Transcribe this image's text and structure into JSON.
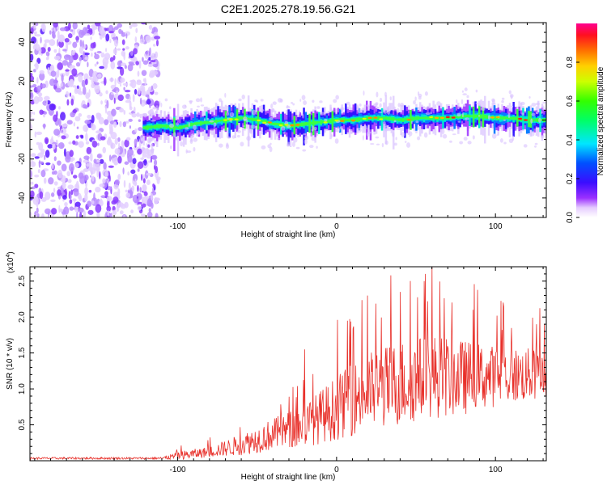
{
  "title": "C2E1.2025.278.19.56.G21",
  "colors": {
    "snr_line": "#e8302a",
    "axis": "#000000",
    "cloud": "#8a2be2"
  },
  "chart_data": [
    {
      "type": "heatmap",
      "name": "spectrogram",
      "xlabel": "Height of straight line (km)",
      "ylabel": "Frequency (Hz)",
      "xlim": [
        -193,
        132
      ],
      "ylim": [
        -50,
        50
      ],
      "xticks": [
        -100,
        0,
        100
      ],
      "xtick_labels": [
        "-100",
        "0",
        "100"
      ],
      "yticks": [
        -40,
        -20,
        0,
        20,
        40
      ],
      "ytick_labels": [
        "-40",
        "-20",
        "0",
        "20",
        "40"
      ],
      "noise_region_x": [
        -193,
        -112
      ],
      "signal_start_x": -122,
      "center_line": [
        [
          -122,
          -4
        ],
        [
          -110,
          -3
        ],
        [
          -100,
          -4
        ],
        [
          -90,
          -2
        ],
        [
          -80,
          -1
        ],
        [
          -70,
          0
        ],
        [
          -60,
          1
        ],
        [
          -50,
          0
        ],
        [
          -40,
          -2
        ],
        [
          -30,
          -3
        ],
        [
          -20,
          -2
        ],
        [
          -10,
          -1
        ],
        [
          0,
          0
        ],
        [
          10,
          0
        ],
        [
          20,
          1
        ],
        [
          30,
          1
        ],
        [
          40,
          0
        ],
        [
          50,
          1
        ],
        [
          60,
          1
        ],
        [
          70,
          1
        ],
        [
          80,
          2
        ],
        [
          90,
          2
        ],
        [
          100,
          1
        ],
        [
          110,
          1
        ],
        [
          120,
          0
        ],
        [
          132,
          0
        ]
      ],
      "colorbar": {
        "label": "Normalized spectral amplitude",
        "range": [
          0,
          1
        ],
        "ticks": [
          0.0,
          0.2,
          0.4,
          0.6,
          0.8
        ],
        "tick_labels": [
          "0.0",
          "0.2",
          "0.4",
          "0.6",
          "0.8"
        ]
      }
    },
    {
      "type": "line",
      "name": "snr",
      "xlabel": "Height of straight line (km)",
      "ylabel": "SNR (10 * v/v)",
      "y_multiplier": "(x10",
      "y_multiplier_exp": "4",
      "y_multiplier_close": ")",
      "xlim": [
        -193,
        132
      ],
      "ylim": [
        0,
        2.7
      ],
      "xticks": [
        -100,
        0,
        100
      ],
      "xtick_labels": [
        "-100",
        "0",
        "100"
      ],
      "yticks": [
        0.5,
        1.0,
        1.5,
        2.0,
        2.5
      ],
      "ytick_labels": [
        "0.5",
        "1.0",
        "1.5",
        "2.0",
        "2.5"
      ],
      "envelope": [
        {
          "x": -193,
          "base": 0.03,
          "amp": 0.03
        },
        {
          "x": -110,
          "base": 0.03,
          "amp": 0.03
        },
        {
          "x": -100,
          "base": 0.05,
          "amp": 0.12
        },
        {
          "x": -80,
          "base": 0.1,
          "amp": 0.15
        },
        {
          "x": -60,
          "base": 0.18,
          "amp": 0.3
        },
        {
          "x": -40,
          "base": 0.3,
          "amp": 0.45
        },
        {
          "x": -20,
          "base": 0.4,
          "amp": 0.6
        },
        {
          "x": 0,
          "base": 0.6,
          "amp": 0.9
        },
        {
          "x": 20,
          "base": 0.8,
          "amp": 1.1
        },
        {
          "x": 40,
          "base": 0.9,
          "amp": 1.2
        },
        {
          "x": 60,
          "base": 1.0,
          "amp": 1.2
        },
        {
          "x": 80,
          "base": 1.0,
          "amp": 1.05
        },
        {
          "x": 100,
          "base": 1.05,
          "amp": 0.85
        },
        {
          "x": 132,
          "base": 1.1,
          "amp": 0.7
        }
      ],
      "peaks": [
        {
          "x": -20,
          "y": 1.55
        },
        {
          "x": 7,
          "y": 1.95
        },
        {
          "x": 40,
          "y": 2.35
        },
        {
          "x": 56,
          "y": 2.6
        },
        {
          "x": 60,
          "y": 2.7
        },
        {
          "x": 86,
          "y": 2.1
        },
        {
          "x": 126,
          "y": 1.9
        }
      ]
    }
  ]
}
